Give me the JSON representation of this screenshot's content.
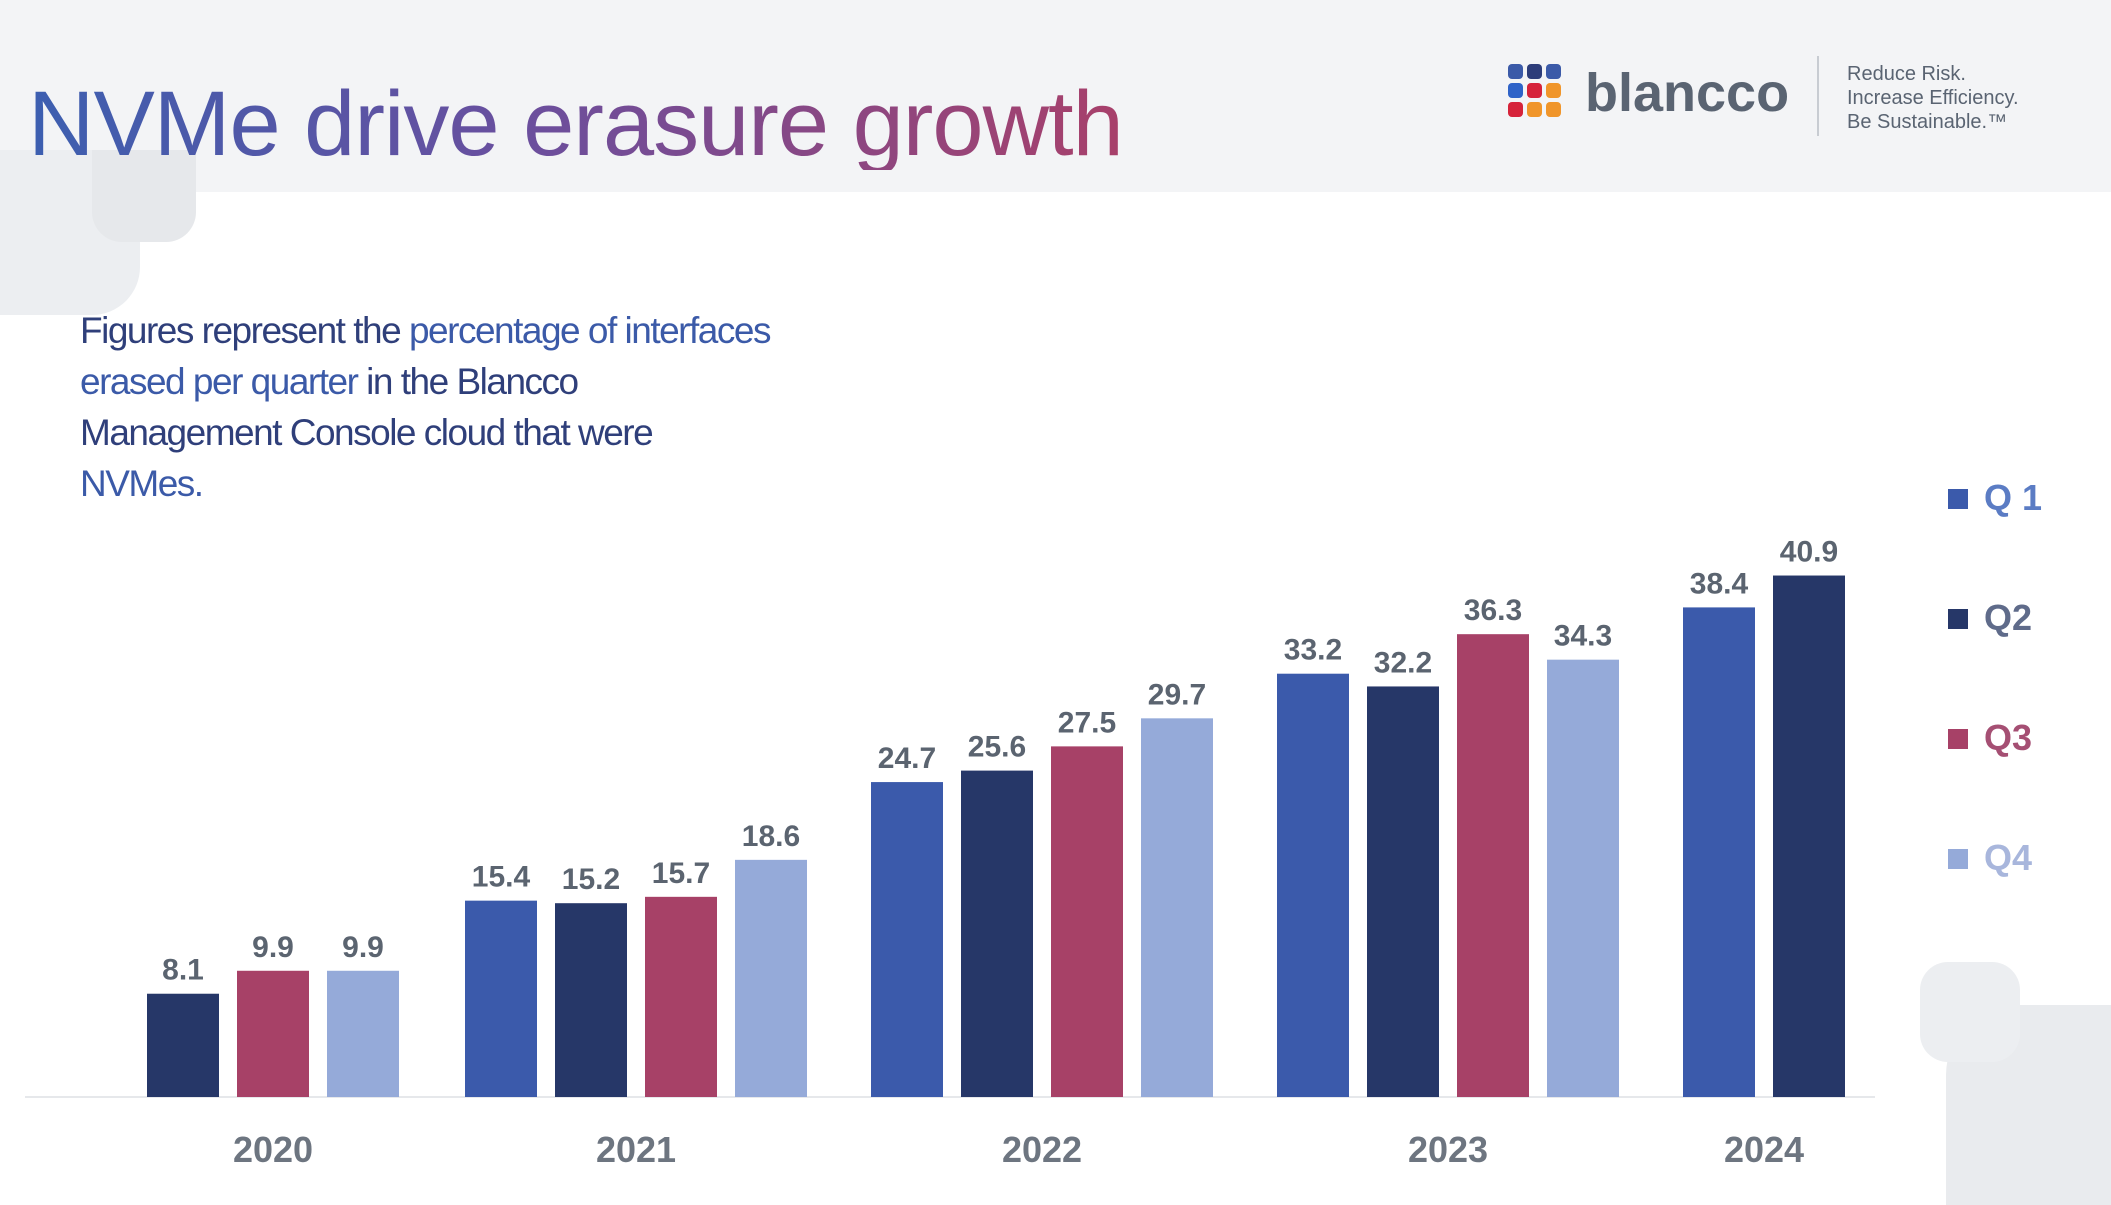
{
  "header": {
    "title": "NVMe drive erasure growth",
    "brand": "blancco",
    "tagline": [
      "Reduce Risk.",
      "Increase Efficiency.",
      "Be Sustainable.™"
    ]
  },
  "subtitle": {
    "part1": "Figures represent the ",
    "part2": "percentage of interfaces erased per quarter",
    "part3": " in the Blancco Management Console cloud that were ",
    "part4": "NVMes."
  },
  "logo_colors": [
    "#3b5aa8",
    "#2d3d7a",
    "#3b5aa8",
    "#2f63c8",
    "#d6233a",
    "#f0952a",
    "#d6233a",
    "#f0952a",
    "#f0952a"
  ],
  "colors": {
    "q1": "#3b5aab",
    "q2": "#263768",
    "q3": "#a74167",
    "q4": "#95aad9",
    "label": "#5b6470",
    "legend_text": "#a5b3dc"
  },
  "chart_data": {
    "type": "bar",
    "categories": [
      "2020",
      "2021",
      "2022",
      "2023",
      "2024"
    ],
    "series": [
      {
        "name": "Q 1",
        "values": [
          null,
          15.4,
          24.7,
          33.2,
          38.4
        ]
      },
      {
        "name": "Q2",
        "values": [
          8.1,
          15.2,
          25.6,
          32.2,
          40.9
        ]
      },
      {
        "name": "Q3",
        "values": [
          9.9,
          15.7,
          27.5,
          36.3,
          null
        ]
      },
      {
        "name": "Q4",
        "values": [
          9.9,
          18.6,
          29.7,
          34.3,
          null
        ]
      }
    ],
    "ylim": [
      0,
      45
    ],
    "grid": false,
    "legend": "right"
  }
}
